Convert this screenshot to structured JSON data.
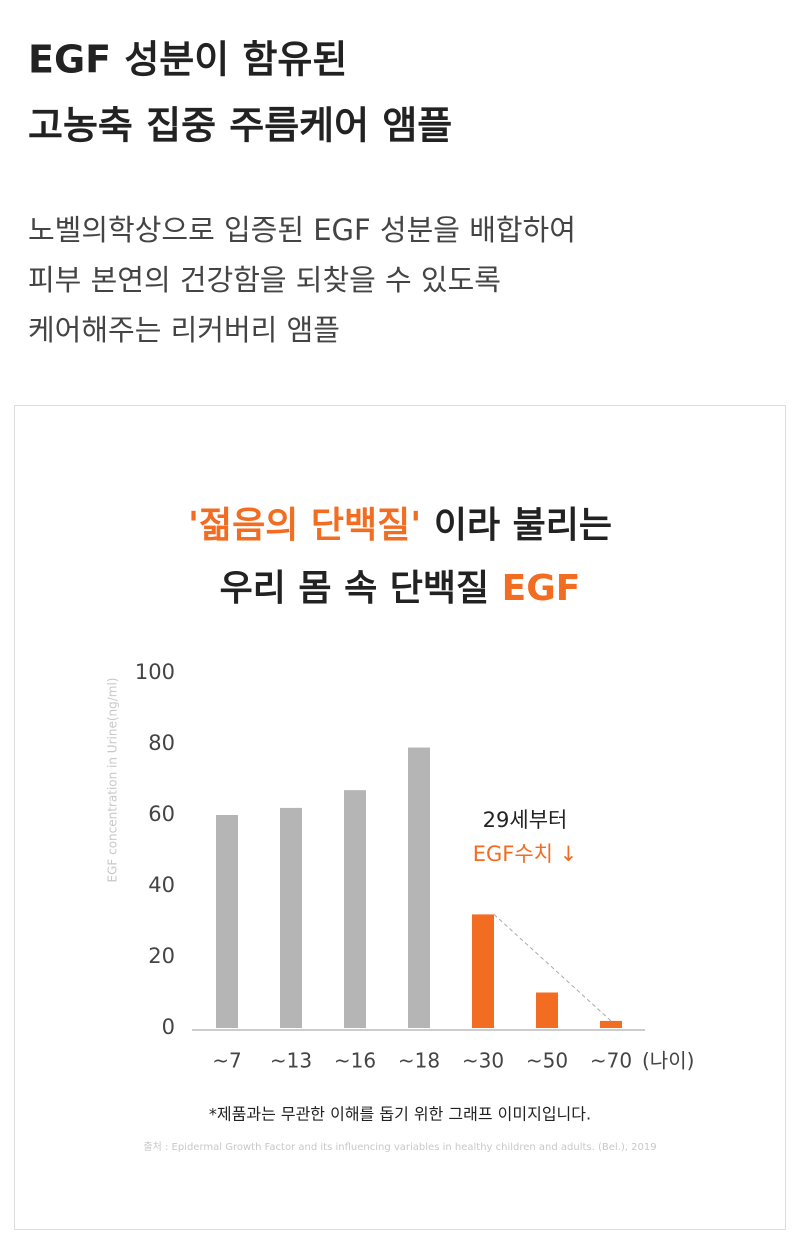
{
  "header": {
    "title": [
      "EGF 성분이 함유된",
      "고농축 집중 주름케어 앰플"
    ],
    "description": [
      "노벨의학상으로 입증된 EGF 성분을 배합하여",
      "피부 본연의 건강함을 되찾을 수 있도록",
      "케어해주는 리커버리 앰플"
    ]
  },
  "chart_data": {
    "type": "bar",
    "title": [
      [
        {
          "text": "'젊음의 단백질'",
          "color": "#f26c22"
        },
        {
          "text": " 이라 불리는",
          "color": "#222222"
        }
      ],
      [
        {
          "text": "우리 몸 속 단백질 ",
          "color": "#222222"
        },
        {
          "text": "EGF",
          "color": "#f26c22"
        }
      ]
    ],
    "y_label": "EGF concentration in Urine(ng/ml)",
    "x_label": "(나이)",
    "categories": [
      "~7",
      "~13",
      "~16",
      "~18",
      "~30",
      "~50",
      "~70"
    ],
    "values": [
      60,
      62,
      67,
      79,
      32,
      10,
      2
    ],
    "colors": [
      "#b5b5b5",
      "#b5b5b5",
      "#b5b5b5",
      "#b5b5b5",
      "#f26c22",
      "#f26c22",
      "#f26c22"
    ],
    "ylim": [
      0,
      100
    ],
    "yticks": [
      0,
      20,
      40,
      60,
      80,
      100
    ],
    "grid": false,
    "annotation": [
      {
        "text": "29세부터",
        "color": "#222222"
      },
      {
        "text": "EGF수치 ↓",
        "color": "#f26c22"
      }
    ],
    "footnote": "*제품과는 무관한 이해를 돕기 위한 그래프 이미지입니다.",
    "source": "출처 : Epidermal Growth Factor and its influencing variables in healthy children and adults. (Bel.), 2019"
  }
}
